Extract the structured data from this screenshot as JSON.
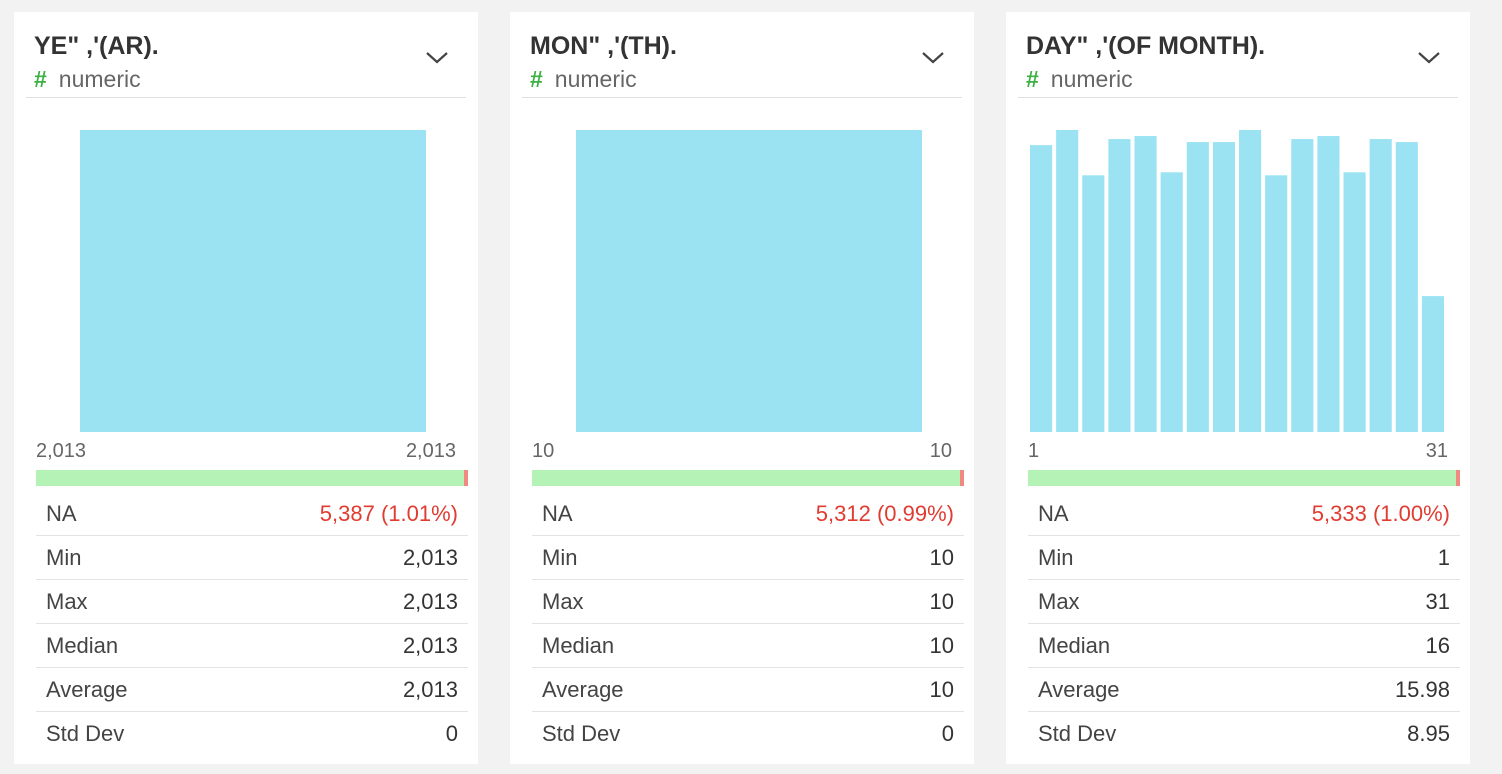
{
  "colors": {
    "bar": "#9be3f3",
    "na_present": "#b5f2b5",
    "na_missing": "#f08a80",
    "na_text": "#e03c31",
    "type_icon": "#3cb043"
  },
  "chart_data": [
    {
      "type": "bar",
      "title": "YE\" ,'(AR).",
      "subtitle": "numeric",
      "type_icon": "#",
      "range_min_label": "2,013",
      "range_max_label": "2,013",
      "bins": [
        2013
      ],
      "values": [
        100
      ],
      "ylim": [
        0,
        100
      ],
      "na_fraction": 0.0101,
      "stats": [
        {
          "label": "NA",
          "value": "5,387 (1.01%)"
        },
        {
          "label": "Min",
          "value": "2,013"
        },
        {
          "label": "Max",
          "value": "2,013"
        },
        {
          "label": "Median",
          "value": "2,013"
        },
        {
          "label": "Average",
          "value": "2,013"
        },
        {
          "label": "Std Dev",
          "value": "0"
        }
      ]
    },
    {
      "type": "bar",
      "title": "MON\" ,'(TH).",
      "subtitle": "numeric",
      "type_icon": "#",
      "range_min_label": "10",
      "range_max_label": "10",
      "bins": [
        10
      ],
      "values": [
        100
      ],
      "ylim": [
        0,
        100
      ],
      "na_fraction": 0.0099,
      "stats": [
        {
          "label": "NA",
          "value": "5,312 (0.99%)"
        },
        {
          "label": "Min",
          "value": "10"
        },
        {
          "label": "Max",
          "value": "10"
        },
        {
          "label": "Median",
          "value": "10"
        },
        {
          "label": "Average",
          "value": "10"
        },
        {
          "label": "Std Dev",
          "value": "0"
        }
      ]
    },
    {
      "type": "bar",
      "title": "DAY\" ,'(OF MONTH).",
      "subtitle": "numeric",
      "type_icon": "#",
      "range_min_label": "1",
      "range_max_label": "31",
      "bins": [
        1,
        3,
        5,
        7,
        9,
        11,
        13,
        15,
        17,
        19,
        21,
        23,
        25,
        27,
        29,
        31
      ],
      "values": [
        95,
        100,
        85,
        97,
        98,
        86,
        96,
        96,
        100,
        85,
        97,
        98,
        86,
        97,
        96,
        45
      ],
      "ylim": [
        0,
        100
      ],
      "na_fraction": 0.01,
      "stats": [
        {
          "label": "NA",
          "value": "5,333 (1.00%)"
        },
        {
          "label": "Min",
          "value": "1"
        },
        {
          "label": "Max",
          "value": "31"
        },
        {
          "label": "Median",
          "value": "16"
        },
        {
          "label": "Average",
          "value": "15.98"
        },
        {
          "label": "Std Dev",
          "value": "8.95"
        }
      ]
    }
  ]
}
